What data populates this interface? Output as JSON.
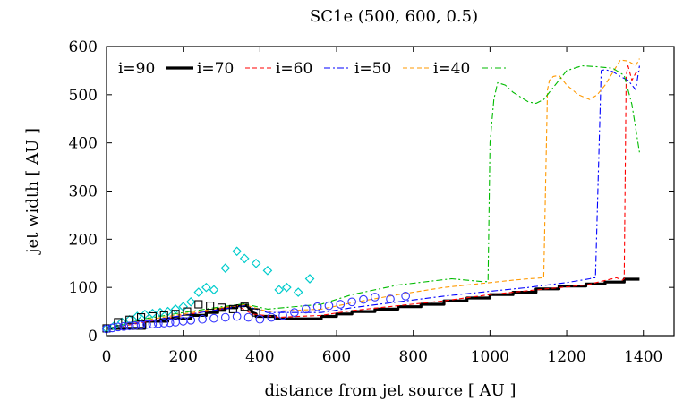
{
  "chart_data": {
    "type": "line",
    "title": "SC1e (500, 600, 0.5)",
    "xlabel": "distance from jet source [ AU ]",
    "ylabel": "jet width [ AU ]",
    "xlim": [
      0,
      1480
    ],
    "ylim": [
      0,
      600
    ],
    "xticks": [
      0,
      200,
      400,
      600,
      800,
      1000,
      1200,
      1400
    ],
    "yticks": [
      0,
      100,
      200,
      300,
      400,
      500,
      600
    ],
    "legend_position": "top-left, inside",
    "series": [
      {
        "name": "i=90",
        "style": "solid-thick",
        "color": "#000000",
        "x": [
          0,
          100,
          100,
          160,
          160,
          220,
          220,
          260,
          260,
          290,
          290,
          310,
          310,
          340,
          340,
          360,
          365,
          375,
          380,
          390,
          390,
          440,
          440,
          560,
          560,
          600,
          600,
          640,
          640,
          700,
          700,
          760,
          760,
          820,
          820,
          880,
          880,
          940,
          940,
          1000,
          1000,
          1060,
          1060,
          1120,
          1120,
          1180,
          1180,
          1250,
          1250,
          1300,
          1300,
          1350,
          1350,
          1390
        ],
        "y": [
          15,
          15,
          30,
          30,
          35,
          35,
          42,
          42,
          48,
          48,
          55,
          55,
          58,
          58,
          62,
          62,
          63,
          55,
          48,
          45,
          40,
          40,
          35,
          35,
          40,
          40,
          45,
          45,
          50,
          50,
          55,
          55,
          60,
          60,
          65,
          65,
          72,
          72,
          78,
          78,
          85,
          85,
          90,
          90,
          97,
          97,
          103,
          103,
          107,
          107,
          111,
          111,
          117,
          117
        ]
      },
      {
        "name": "i=70",
        "style": "dashed",
        "color": "#ff0000",
        "x": [
          0,
          100,
          160,
          220,
          300,
          340,
          380,
          450,
          560,
          640,
          760,
          880,
          1000,
          1120,
          1250,
          1330,
          1345,
          1350,
          1355,
          1360,
          1370,
          1380,
          1390
        ],
        "y": [
          14,
          28,
          36,
          45,
          55,
          62,
          45,
          38,
          42,
          52,
          62,
          72,
          85,
          95,
          105,
          120,
          115,
          118,
          540,
          560,
          530,
          545,
          550
        ]
      },
      {
        "name": "i=60",
        "style": "dash-dot",
        "color": "#0000ff",
        "x": [
          0,
          100,
          200,
          300,
          360,
          420,
          560,
          640,
          760,
          880,
          1000,
          1100,
          1200,
          1260,
          1268,
          1275,
          1290,
          1300,
          1320,
          1340,
          1360,
          1380,
          1390
        ],
        "y": [
          14,
          30,
          42,
          55,
          62,
          48,
          48,
          58,
          70,
          82,
          92,
          100,
          110,
          118,
          120,
          120,
          550,
          552,
          548,
          538,
          530,
          510,
          560
        ]
      },
      {
        "name": "i=50",
        "style": "dashed",
        "color": "#ff9900",
        "x": [
          0,
          100,
          200,
          300,
          360,
          420,
          560,
          640,
          760,
          880,
          1000,
          1060,
          1100,
          1140,
          1150,
          1155,
          1165,
          1180,
          1200,
          1230,
          1260,
          1280,
          1300,
          1340,
          1360,
          1380,
          1390
        ],
        "y": [
          14,
          32,
          45,
          58,
          64,
          50,
          55,
          68,
          85,
          100,
          110,
          115,
          118,
          120,
          510,
          530,
          538,
          540,
          520,
          500,
          490,
          500,
          520,
          572,
          570,
          560,
          575
        ]
      },
      {
        "name": "i=40",
        "style": "dash-dot",
        "color": "#00bb00",
        "x": [
          0,
          100,
          200,
          300,
          360,
          420,
          560,
          640,
          760,
          900,
          980,
          995,
          1000,
          1010,
          1020,
          1040,
          1060,
          1080,
          1100,
          1120,
          1140,
          1160,
          1200,
          1240,
          1280,
          1320,
          1350,
          1370,
          1390
        ],
        "y": [
          14,
          35,
          48,
          60,
          66,
          55,
          65,
          85,
          105,
          118,
          112,
          112,
          400,
          490,
          525,
          520,
          505,
          495,
          485,
          482,
          490,
          510,
          550,
          560,
          558,
          555,
          540,
          480,
          380
        ]
      },
      {
        "name": "cyan diamonds",
        "style": "marker-diamond",
        "color": "#00cccc",
        "x": [
          0,
          20,
          40,
          60,
          80,
          100,
          120,
          140,
          160,
          180,
          200,
          220,
          240,
          260,
          280,
          310,
          340,
          360,
          390,
          420,
          450,
          470,
          500,
          530
        ],
        "y": [
          15,
          20,
          28,
          33,
          40,
          44,
          46,
          48,
          50,
          55,
          60,
          70,
          90,
          100,
          95,
          140,
          175,
          160,
          150,
          135,
          95,
          100,
          90,
          118
        ]
      },
      {
        "name": "black squares",
        "style": "marker-square",
        "color": "#000000",
        "x": [
          0,
          30,
          60,
          90,
          120,
          150,
          180,
          210,
          240,
          270,
          300,
          330,
          360,
          390
        ],
        "y": [
          15,
          28,
          33,
          38,
          40,
          42,
          45,
          50,
          65,
          62,
          58,
          55,
          60,
          48
        ]
      },
      {
        "name": "blue circles",
        "style": "marker-circle",
        "color": "#3333ff",
        "x": [
          0,
          15,
          30,
          45,
          60,
          75,
          90,
          105,
          120,
          135,
          150,
          165,
          180,
          200,
          220,
          250,
          280,
          310,
          340,
          370,
          400,
          430,
          460,
          490,
          520,
          550,
          580,
          610,
          640,
          670,
          700,
          740,
          780
        ],
        "y": [
          14,
          16,
          18,
          19,
          20,
          21,
          22,
          23,
          24,
          25,
          26,
          27,
          28,
          30,
          32,
          34,
          36,
          38,
          40,
          38,
          34,
          38,
          42,
          48,
          55,
          60,
          62,
          65,
          70,
          75,
          80,
          76,
          82
        ]
      }
    ]
  }
}
